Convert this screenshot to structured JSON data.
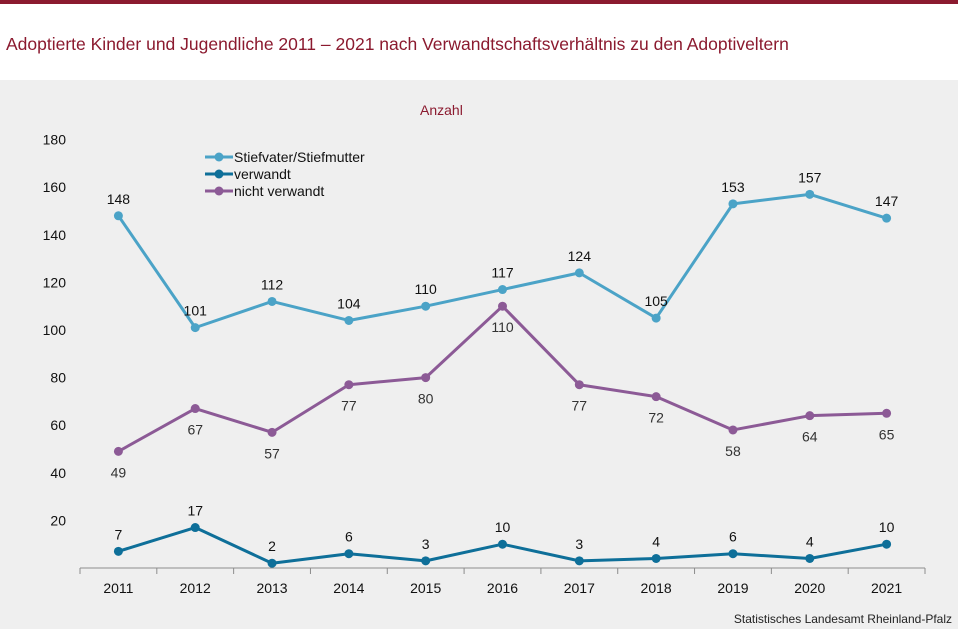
{
  "header": {
    "title": "Adoptierte Kinder und Jugendliche 2011 – 2021 nach Verwandtschaftsverhältnis zu den Adoptiveltern"
  },
  "source": "Statistisches Landesamt Rheinland-Pfalz",
  "colors": {
    "brand": "#8b1a2f",
    "stiefeltern": "#4ba3c7",
    "verwandt": "#0e6f99",
    "nicht_verwandt": "#8c5a96"
  },
  "chart_data": {
    "type": "line",
    "title": "Adoptierte Kinder und Jugendliche 2011 – 2021 nach Verwandtschaftsverhältnis zu den Adoptiveltern",
    "ylabel": "Anzahl",
    "xlabel": "",
    "ylim": [
      0,
      180
    ],
    "yticks": [
      20,
      40,
      60,
      80,
      100,
      120,
      140,
      160,
      180
    ],
    "grid": false,
    "legend_position": "top-left",
    "categories": [
      "2011",
      "2012",
      "2013",
      "2014",
      "2015",
      "2016",
      "2017",
      "2018",
      "2019",
      "2020",
      "2021"
    ],
    "series": [
      {
        "key": "stiefeltern",
        "name": "Stiefvater/Stiefmutter",
        "values": [
          148,
          101,
          112,
          104,
          110,
          117,
          124,
          105,
          153,
          157,
          147
        ],
        "label_pos": [
          "above",
          "above",
          "above",
          "above",
          "above",
          "above",
          "above",
          "above",
          "above",
          "above",
          "above"
        ]
      },
      {
        "key": "verwandt",
        "name": "verwandt",
        "values": [
          7,
          17,
          2,
          6,
          3,
          10,
          3,
          4,
          6,
          4,
          10
        ],
        "label_pos": [
          "above",
          "above",
          "above",
          "above",
          "above",
          "above",
          "above",
          "above",
          "above",
          "above",
          "above"
        ]
      },
      {
        "key": "nicht_verwandt",
        "name": "nicht verwandt",
        "values": [
          49,
          67,
          57,
          77,
          80,
          110,
          77,
          72,
          58,
          64,
          65
        ],
        "label_pos": [
          "below",
          "below",
          "below",
          "below",
          "below",
          "below",
          "below",
          "below",
          "below",
          "below",
          "below"
        ]
      }
    ]
  }
}
